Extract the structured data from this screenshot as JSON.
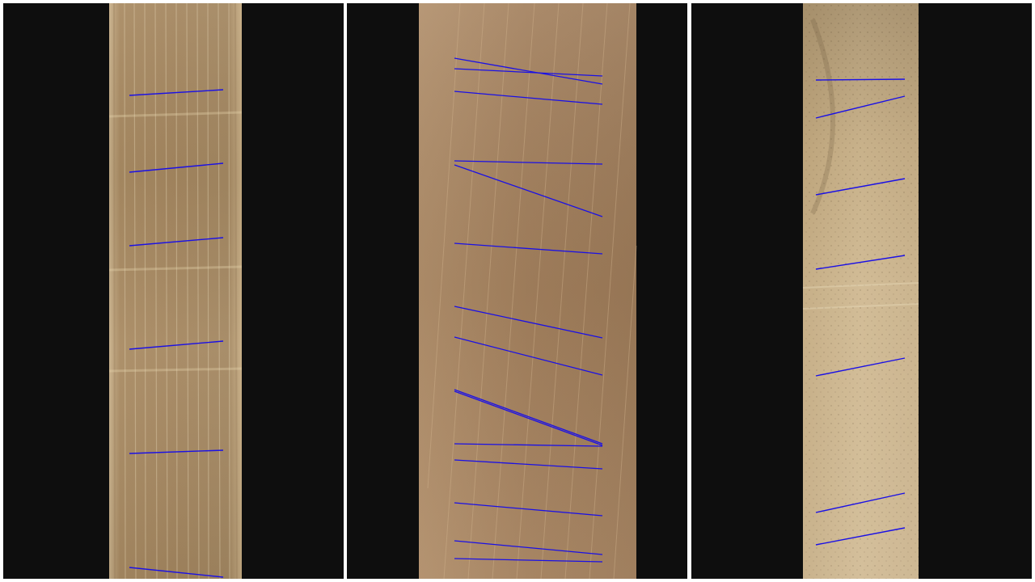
{
  "figure": {
    "panel_count": 3,
    "colors": {
      "background": "#0e0e0e",
      "separator": "#ffffff",
      "annotation_line": "#1a10e6"
    },
    "panels": [
      {
        "name": "wood-sample-1",
        "wood_colors": {
          "base": "#a58760",
          "light": "#c4a87e",
          "dark": "#8d7150",
          "grain": "#efe0c0"
        },
        "annotation_line_count": 6
      },
      {
        "name": "wood-sample-2",
        "wood_colors": {
          "base": "#a3805d",
          "light": "#b89572",
          "dark": "#8e6d4c",
          "grain": "#d4b690"
        },
        "annotation_line_count": 15
      },
      {
        "name": "wood-sample-3",
        "wood_colors": {
          "base": "#cdb58c",
          "light": "#dcc7a0",
          "dark": "#b49c74",
          "grain": "#7a6548"
        },
        "annotation_line_count": 7
      }
    ]
  }
}
